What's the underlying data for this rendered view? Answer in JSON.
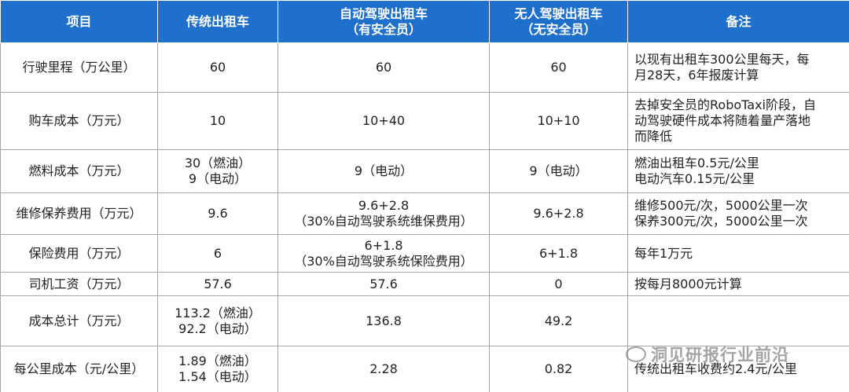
{
  "table": {
    "header": [
      [
        "项目"
      ],
      [
        "传统出租车"
      ],
      [
        "自动驾驶出租车",
        "（有安全员）"
      ],
      [
        "无人驾驶出租车",
        "（无安全员）"
      ],
      [
        "备注"
      ]
    ],
    "rows": [
      [
        [
          "行驶里程（万公里）"
        ],
        [
          "60"
        ],
        [
          "60"
        ],
        [
          "60"
        ],
        [
          "以现有出租车300公里每天，每",
          "月28天，6年报废计算"
        ]
      ],
      [
        [
          "购车成本（万元）"
        ],
        [
          "10"
        ],
        [
          "10+40"
        ],
        [
          "10+10"
        ],
        [
          "去掉安全员的RoboTaxi阶段，自",
          "动驾驶硬件成本将随着量产落地",
          "而降低"
        ]
      ],
      [
        [
          "燃料成本（万元）"
        ],
        [
          "30（燃油）",
          "9（电动）"
        ],
        [
          "9（电动）"
        ],
        [
          "9（电动）"
        ],
        [
          "燃油出租车0.5元/公里",
          "电动汽车0.15元/公里"
        ]
      ],
      [
        [
          "维修保养费用（万元）"
        ],
        [
          "9.6"
        ],
        [
          "9.6+2.8",
          "（30%自动驾驶系统维保费用）"
        ],
        [
          "9.6+2.8"
        ],
        [
          "维修500元/次，5000公里一次",
          "保养300元/次，5000公里一次"
        ]
      ],
      [
        [
          "保险费用（万元）"
        ],
        [
          "6"
        ],
        [
          "6+1.8",
          "（30%自动驾驶系统保险费用）"
        ],
        [
          "6+1.8"
        ],
        [
          "每年1万元"
        ]
      ],
      [
        [
          "司机工资（万元）"
        ],
        [
          "57.6"
        ],
        [
          "57.6"
        ],
        [
          "0"
        ],
        [
          "按每月8000元计算"
        ]
      ],
      [
        [
          "成本总计（万元）"
        ],
        [
          "113.2（燃油）",
          "92.2（电动）"
        ],
        [
          "136.8"
        ],
        [
          "49.2"
        ],
        []
      ],
      [
        [
          "每公里成本（元/公里）"
        ],
        [
          "1.89（燃油）",
          "1.54（电动）"
        ],
        [
          "2.28"
        ],
        [
          "0.82"
        ],
        [
          "传统出租车收费约2.4元/公里"
        ]
      ]
    ]
  },
  "watermark": {
    "text": "洞见研报行业前沿"
  }
}
